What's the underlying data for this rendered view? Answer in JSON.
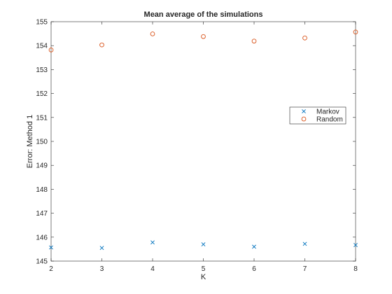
{
  "chart_data": {
    "type": "scatter",
    "title": "Mean average of the simulations",
    "xlabel": "K",
    "ylabel": "Error: Method 1",
    "xlim": [
      2,
      8
    ],
    "ylim": [
      145,
      155
    ],
    "xticks": [
      "2",
      "3",
      "4",
      "5",
      "6",
      "7",
      "8"
    ],
    "yticks": [
      "145",
      "146",
      "147",
      "148",
      "149",
      "150",
      "151",
      "152",
      "153",
      "154",
      "155"
    ],
    "grid": false,
    "legend_position": "right",
    "x": [
      2,
      3,
      4,
      5,
      6,
      7,
      8
    ],
    "series": [
      {
        "name": "Markov",
        "marker": "x",
        "color": "#0072BD",
        "values": [
          145.57,
          145.55,
          145.78,
          145.7,
          145.6,
          145.72,
          145.67
        ]
      },
      {
        "name": "Random",
        "marker": "o",
        "color": "#D95319",
        "values": [
          153.82,
          154.03,
          154.49,
          154.38,
          154.19,
          154.32,
          154.57
        ]
      }
    ]
  }
}
